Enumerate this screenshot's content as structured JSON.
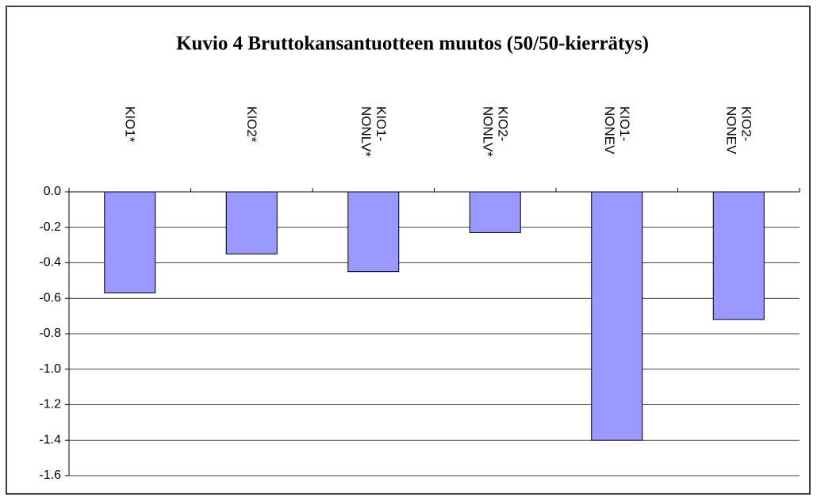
{
  "chart_data": {
    "type": "bar",
    "title": "Kuvio 4 Bruttokansantuotteen muutos (50/50-kierrätys)",
    "categories": [
      "KIO1*",
      "KIO2*",
      "KIO1-NONLV*",
      "KIO2-NONLV*",
      "KIO1-NONEV",
      "KIO2-NONEV"
    ],
    "values": [
      -0.57,
      -0.35,
      -0.45,
      -0.23,
      -1.4,
      -0.72
    ],
    "color": "#9999ff",
    "ylim": [
      -1.6,
      0
    ],
    "yticks": [
      {
        "value": 0,
        "label": "0.0"
      },
      -0.2,
      -0.4,
      -0.6,
      -0.8,
      {
        "value": -1,
        "label": "-1.0"
      },
      -1.2,
      -1.4,
      -1.6
    ],
    "grid": true
  }
}
